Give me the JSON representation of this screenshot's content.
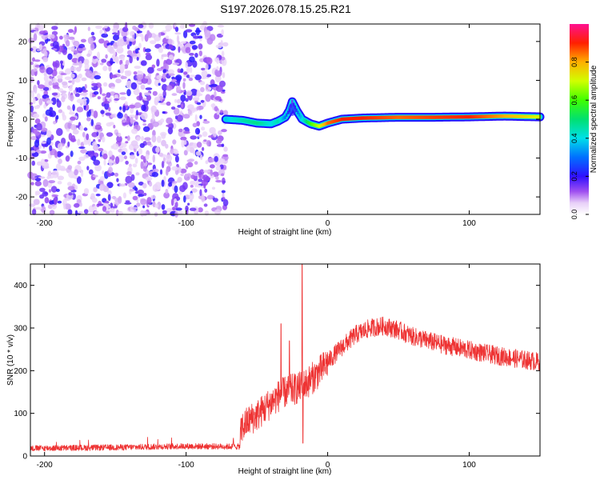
{
  "title": "S197.2026.078.15.25.R21",
  "chart_data": [
    {
      "type": "heatmap",
      "xlabel": "Height of straight line (km)",
      "ylabel": "Frequency (Hz)",
      "xlim": [
        -210,
        150
      ],
      "ylim": [
        -24.5,
        24.5
      ],
      "xticks": [
        -200,
        -100,
        0,
        100
      ],
      "xtick_labels": [
        "-200",
        "-100",
        "0",
        "100"
      ],
      "yticks": [
        -20,
        -10,
        0,
        10,
        20
      ],
      "ytick_labels": [
        "-20",
        "-10",
        "0",
        "10",
        "20"
      ],
      "colorbar": {
        "label": "Normalized spectral amplitude",
        "range": [
          0,
          1
        ],
        "ticks": [
          0.0,
          0.2,
          0.4,
          0.6,
          0.8
        ],
        "tick_labels": [
          "0.0",
          "0.2",
          "0.4",
          "0.6",
          "0.8"
        ]
      },
      "noise_region_x": [
        -210,
        -72
      ],
      "trace": {
        "x": [
          -72,
          -60,
          -50,
          -40,
          -35,
          -30,
          -27,
          -25,
          -22,
          -18,
          -12,
          -6,
          0,
          10,
          25,
          50,
          75,
          100,
          125,
          150
        ],
        "y": [
          0,
          -0.3,
          -1,
          -1.2,
          -0.5,
          0.5,
          2.3,
          4.5,
          2.3,
          0,
          -1.2,
          -1.8,
          -1,
          0,
          0.3,
          0.5,
          0.5,
          0.6,
          0.8,
          0.6
        ],
        "amplitude": [
          0.38,
          0.45,
          0.48,
          0.4,
          0.45,
          0.3,
          0.2,
          0.15,
          0.25,
          0.4,
          0.6,
          0.7,
          0.85,
          0.9,
          0.9,
          0.85,
          0.88,
          0.9,
          0.8,
          0.7
        ]
      }
    },
    {
      "type": "line",
      "xlabel": "Height of straight line (km)",
      "ylabel": "SNR (10 * v/v)",
      "xlim": [
        -210,
        150
      ],
      "ylim": [
        0,
        450
      ],
      "xticks": [
        -200,
        -100,
        0,
        100
      ],
      "xtick_labels": [
        "-200",
        "-100",
        "0",
        "100"
      ],
      "yticks": [
        0,
        100,
        200,
        300,
        400
      ],
      "ytick_labels": [
        "0",
        "100",
        "200",
        "300",
        "400"
      ],
      "color": "#ee3333",
      "series": [
        {
          "name": "SNR",
          "x": [
            -210,
            -150,
            -100,
            -62,
            -61,
            -55,
            -50,
            -45,
            -40,
            -35,
            -30,
            -25,
            -20,
            -17,
            -15,
            -10,
            -5,
            0,
            10,
            20,
            30,
            40,
            50,
            60,
            80,
            100,
            120,
            150
          ],
          "y": [
            18,
            20,
            23,
            22,
            65,
            85,
            95,
            110,
            125,
            140,
            150,
            155,
            160,
            165,
            170,
            185,
            200,
            220,
            255,
            285,
            300,
            305,
            295,
            280,
            262,
            248,
            235,
            220
          ]
        }
      ],
      "spikes": [
        {
          "x": -18,
          "y": 450
        },
        {
          "x": -17.5,
          "y": 30
        },
        {
          "x": -33,
          "y": 310
        },
        {
          "x": -27,
          "y": 270
        }
      ]
    }
  ]
}
